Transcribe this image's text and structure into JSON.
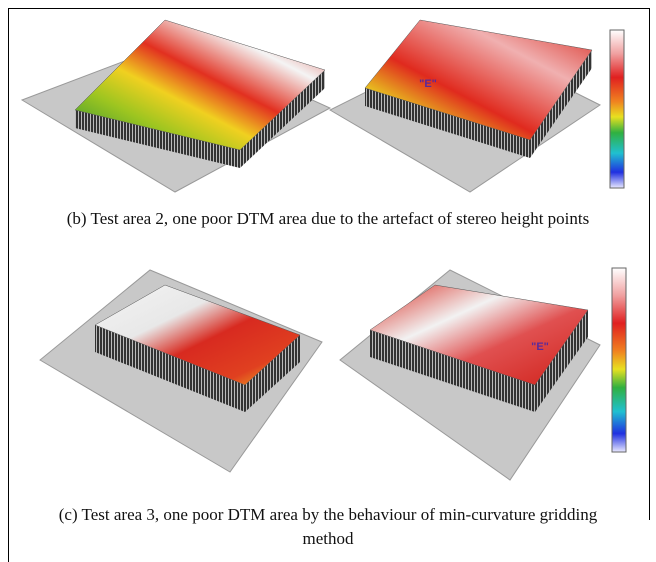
{
  "figures": [
    {
      "caption": "(b) Test area 2, one poor DTM area due to the artefact of stereo height points",
      "marker": "\"E\""
    },
    {
      "caption": "(c) Test area 3, one poor DTM area by the behaviour of min-curvature gridding method",
      "marker": "\"E\""
    }
  ]
}
